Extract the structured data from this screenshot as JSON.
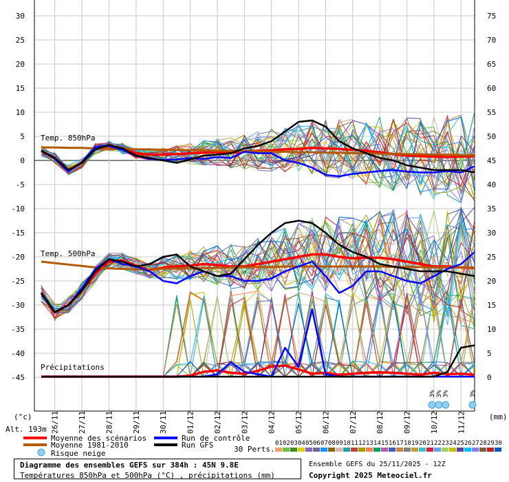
{
  "chart_data": {
    "type": "line",
    "title": "Diagramme des ensembles GEFS sur 384h : 45N 9.8E",
    "subtitle": "Températures 850hPa et 500hPa (°C) , précipitations (mm)",
    "left_axis": {
      "label": "(°c)",
      "ticks": [
        30,
        25,
        20,
        15,
        10,
        5,
        0,
        -5,
        -10,
        -15,
        -20,
        -25,
        -30,
        -35,
        -40,
        -45
      ],
      "range": [
        -45,
        30
      ]
    },
    "right_axis": {
      "label": "(mm)",
      "ticks": [
        75,
        70,
        65,
        60,
        55,
        50,
        45,
        40,
        35,
        30,
        25,
        20,
        15,
        10,
        5,
        0
      ],
      "range": [
        0,
        75
      ]
    },
    "altitude_label": "Alt. 193m",
    "x_ticks": [
      "26/11",
      "27/11",
      "28/11",
      "29/11",
      "30/11",
      "01/12",
      "02/12",
      "03/12",
      "04/12",
      "05/12",
      "06/12",
      "07/12",
      "08/12",
      "09/12",
      "10/12",
      "11/12"
    ],
    "panel_labels": [
      "Temp. 850hPa",
      "Temp. 500hPa",
      "Précipitations"
    ],
    "time_hours": [
      0,
      12,
      24,
      36,
      48,
      60,
      72,
      84,
      96,
      108,
      120,
      132,
      144,
      156,
      168,
      180,
      192,
      204,
      216,
      228,
      240,
      252,
      264,
      276,
      288,
      300,
      312,
      324,
      336,
      348,
      360,
      372,
      384
    ],
    "series": [
      {
        "name": "Moyenne des scénarios",
        "color": "#ff0000",
        "panel": "850hPa",
        "values": [
          2,
          0.5,
          -2,
          -0.5,
          2.5,
          3,
          2.5,
          1.5,
          1.2,
          1.2,
          1.3,
          1.5,
          1.6,
          1.7,
          1.6,
          1.8,
          2,
          2.1,
          2.3,
          2.4,
          2.6,
          2.5,
          2.4,
          2.2,
          2,
          1.7,
          1.3,
          1,
          0.9,
          0.8,
          0.7,
          0.8,
          0.9
        ]
      },
      {
        "name": "Moyenne 1981-2010",
        "color": "#b35900",
        "panel": "850hPa",
        "values": [
          2.7,
          2.7,
          2.6,
          2.6,
          2.5,
          2.4,
          2.4,
          2.3,
          2.3,
          2.2,
          2.2,
          2.1,
          2.1,
          2,
          2,
          1.9,
          1.9,
          1.8,
          1.8,
          1.7,
          1.7,
          1.6,
          1.6,
          1.5,
          1.5,
          1.4,
          1.4,
          1.3,
          1.3,
          1.2,
          1.2,
          1.1,
          1.1
        ]
      },
      {
        "name": "Run de contrôle",
        "color": "#0000ff",
        "panel": "850hPa",
        "values": [
          2,
          0.3,
          -2.3,
          -0.3,
          2.8,
          3,
          2.2,
          1,
          0.3,
          0.1,
          0.2,
          0.5,
          0.3,
          0.7,
          0.5,
          1.8,
          1.5,
          1.5,
          0,
          -0.5,
          -1.5,
          -3,
          -3.3,
          -2.8,
          -2.5,
          -2.2,
          -2,
          -2.3,
          -2.5,
          -2.5,
          -2.2,
          -2.5,
          -1.2
        ]
      },
      {
        "name": "Run GFS",
        "color": "#000000",
        "panel": "850hPa",
        "values": [
          2,
          0.5,
          -2,
          -0.5,
          2.3,
          3.2,
          2.5,
          1,
          0.5,
          0,
          -0.5,
          0.2,
          1,
          1.2,
          1.5,
          2.5,
          3,
          4,
          6,
          8,
          8.3,
          7,
          4,
          2.5,
          1.5,
          0.5,
          0,
          -1,
          -1.5,
          -2,
          -2,
          -2,
          -2.5
        ]
      },
      {
        "name": "Moyenne des scénarios",
        "color": "#ff0000",
        "panel": "500hPa",
        "values": [
          -27.5,
          -31.5,
          -30,
          -27,
          -23.5,
          -21,
          -20.8,
          -21.8,
          -22.8,
          -22.2,
          -22,
          -21.8,
          -21.5,
          -21.7,
          -22,
          -22,
          -21.5,
          -21,
          -20.5,
          -20,
          -19.5,
          -19.5,
          -20,
          -20.3,
          -20.2,
          -20.2,
          -20.5,
          -21,
          -21.5,
          -22,
          -22,
          -22.2,
          -22.3
        ]
      },
      {
        "name": "Moyenne 1981-2010",
        "color": "#b35900",
        "panel": "500hPa",
        "values": [
          -21,
          -21.3,
          -21.6,
          -21.9,
          -22.2,
          -22.4,
          -22.5,
          -22.6,
          -22.6,
          -22.5,
          -22.4,
          -22.4,
          -22.3,
          -22.3,
          -22.2,
          -22.2,
          -22.1,
          -22.1,
          -22,
          -22,
          -22,
          -22,
          -22,
          -22,
          -22,
          -22,
          -22.1,
          -22.1,
          -22.1,
          -22.2,
          -22.2,
          -22.2,
          -22.2
        ]
      },
      {
        "name": "Run de contrôle",
        "color": "#0000ff",
        "panel": "500hPa",
        "values": [
          -27.5,
          -31.5,
          -30,
          -26.5,
          -22.5,
          -20.5,
          -21.5,
          -22,
          -23,
          -25,
          -25.5,
          -24,
          -23,
          -24,
          -24,
          -25,
          -25,
          -24.5,
          -23,
          -22,
          -21,
          -24,
          -27.5,
          -26,
          -23,
          -23,
          -24,
          -25,
          -25.5,
          -24,
          -22.5,
          -21.5,
          -19
        ]
      },
      {
        "name": "Run GFS",
        "color": "#000000",
        "panel": "500hPa",
        "values": [
          -27.5,
          -31.5,
          -30,
          -27,
          -23,
          -20.5,
          -21,
          -22,
          -21.5,
          -20,
          -19.5,
          -22,
          -23,
          -24,
          -23.5,
          -20.5,
          -17.5,
          -15,
          -13,
          -12.5,
          -13,
          -15,
          -17.5,
          -19,
          -20,
          -21.5,
          -22,
          -22.5,
          -23,
          -23,
          -23,
          -23.5,
          -24
        ]
      },
      {
        "name": "Moyenne des scénarios",
        "color": "#ff0000",
        "panel": "precip_mm",
        "values": [
          0,
          0,
          0,
          0,
          0,
          0,
          0,
          0,
          0,
          0,
          0,
          0.2,
          1,
          1.3,
          0.8,
          0.6,
          1.2,
          2.1,
          2.3,
          1.5,
          0.6,
          0.8,
          0.4,
          0.6,
          0.8,
          0.9,
          0.8,
          0.6,
          0.4,
          0.8,
          0.5,
          0.6,
          0.4
        ]
      },
      {
        "name": "Run de contrôle",
        "color": "#0000ff",
        "panel": "precip_mm",
        "values": [
          0,
          0,
          0,
          0,
          0,
          0,
          0,
          0,
          0,
          0,
          0,
          0,
          0,
          0.5,
          3,
          1,
          0.5,
          0,
          6,
          2,
          14,
          0.5,
          0,
          0,
          0,
          0,
          0,
          0,
          0,
          0,
          0,
          0,
          0
        ]
      },
      {
        "name": "Run GFS",
        "color": "#000000",
        "panel": "precip_mm",
        "values": [
          0,
          0,
          0,
          0,
          0,
          0,
          0,
          0,
          0,
          0,
          0,
          0,
          0,
          0,
          0,
          0,
          0,
          0,
          0,
          0,
          0,
          0,
          0,
          0,
          0,
          0,
          0,
          0,
          0,
          0,
          1,
          6,
          6.5
        ]
      }
    ],
    "perturbations_label": "30 Perts.",
    "perturbation_ids": [
      "01",
      "02",
      "03",
      "04",
      "05",
      "06",
      "07",
      "08",
      "09",
      "10",
      "11",
      "12",
      "13",
      "14",
      "15",
      "16",
      "17",
      "18",
      "19",
      "20",
      "21",
      "22",
      "23",
      "24",
      "25",
      "26",
      "27",
      "28",
      "29",
      "30"
    ],
    "perturbation_colors": [
      "#e8a070",
      "#6cbf40",
      "#3c8c28",
      "#e0d000",
      "#9060c0",
      "#6a6aa0",
      "#1e90ff",
      "#8b6914",
      "#d8b8b0",
      "#20a0a0",
      "#c04040",
      "#a0a000",
      "#ff7f50",
      "#00a060",
      "#b060b0",
      "#4060c0",
      "#d08040",
      "#808080",
      "#c0a040",
      "#40c0c0",
      "#d02040",
      "#60a0ff",
      "#a0d060",
      "#c0c000",
      "#6040a0",
      "#00c0ff",
      "#8080ff",
      "#806040",
      "#c02020",
      "#0060c0"
    ],
    "snow_risk_hours": [
      348,
      354,
      360,
      384
    ],
    "snow_risk_text": "3%",
    "grid": true
  },
  "legend": {
    "mean": "Moyenne des scénarios",
    "climo": "Moyenne 1981-2010",
    "snow": "Risque neige",
    "control": "Run de contrôle",
    "gfs": "Run GFS"
  },
  "footer": {
    "title": "Diagramme des ensembles GEFS sur 384h : 45N 9.8E",
    "subtitle": "Températures 850hPa et 500hPa (°C) , précipitations (mm)",
    "run": "Ensemble GEFS du 25/11/2025 - 12Z",
    "copyright": "Copyright 2025 Meteociel.fr"
  }
}
